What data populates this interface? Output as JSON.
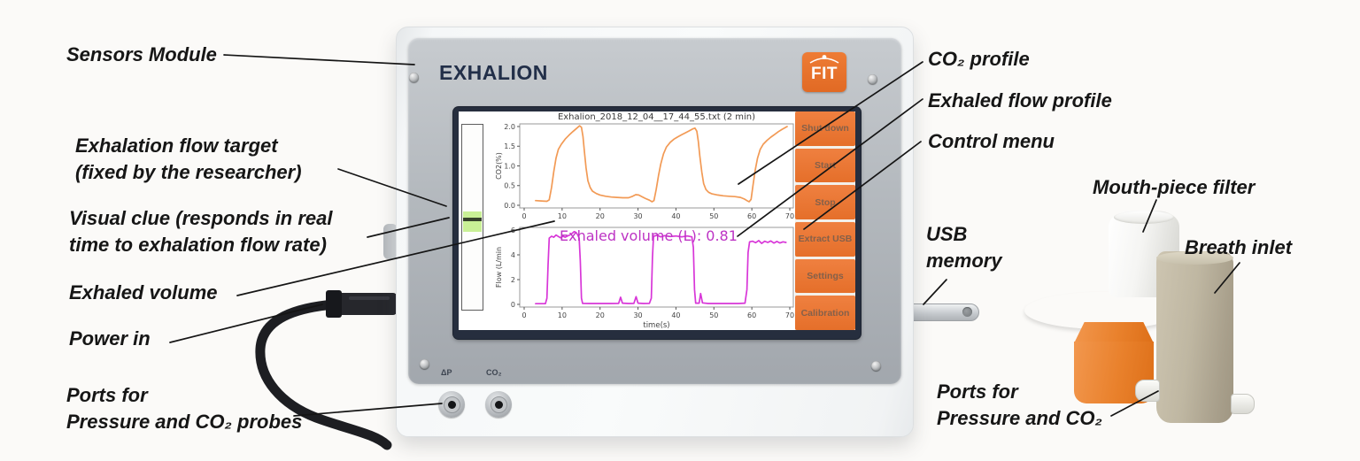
{
  "labels": {
    "sensors_module": "Sensors Module",
    "flow_target_1": "Exhalation flow target",
    "flow_target_2": "(fixed by the researcher)",
    "visual_clue_1": "Visual clue (responds in real",
    "visual_clue_2": "time to exhalation flow rate)",
    "exhaled_volume": "Exhaled volume",
    "power_in": "Power in",
    "ports_probes_1": "Ports for",
    "ports_probes_2": "Pressure and CO₂ probes",
    "co2_profile": "CO₂ profile",
    "flow_profile": "Exhaled flow profile",
    "control_menu": "Control menu",
    "usb_memory_1": "USB",
    "usb_memory_2": "memory",
    "mouthpiece_filter": "Mouth-piece filter",
    "breath_inlet": "Breath inlet",
    "ports_right_1": "Ports for",
    "ports_right_2": "Pressure and CO₂"
  },
  "device": {
    "brand": "EXHALION",
    "logo_text": "FIT",
    "port_pressure": "ΔP",
    "port_co2": "CO₂"
  },
  "screen": {
    "menu_buttons": [
      "Shut down",
      "Start",
      "Stop",
      "Extract USB",
      "Settings",
      "Calibration"
    ],
    "overlay_text": "Exhaled volume (L): 0.81"
  },
  "chart_data": [
    {
      "type": "line",
      "title": "Exhalion_2018_12_04__17_44_55.txt (2 min)",
      "xlabel": "",
      "ylabel": "CO2(%)",
      "xlim": [
        0,
        70
      ],
      "ylim": [
        0.0,
        2.0
      ],
      "xticks": [
        0,
        10,
        20,
        30,
        40,
        50,
        60,
        70
      ],
      "yticks": [
        "0.0",
        "0.5",
        "1.0",
        "1.5",
        "2.0"
      ],
      "color": "#f29a55",
      "legend": "none",
      "grid": false,
      "series": [
        {
          "name": "CO2 concentration",
          "points": [
            [
              3,
              0.12
            ],
            [
              4.5,
              0.11
            ],
            [
              6,
              0.1
            ],
            [
              6.6,
              0.14
            ],
            [
              7.2,
              0.45
            ],
            [
              7.8,
              0.85
            ],
            [
              8.4,
              1.2
            ],
            [
              9,
              1.42
            ],
            [
              9.8,
              1.55
            ],
            [
              10.8,
              1.68
            ],
            [
              11.8,
              1.78
            ],
            [
              12.8,
              1.87
            ],
            [
              13.8,
              1.95
            ],
            [
              14.6,
              2.02
            ],
            [
              15.1,
              1.98
            ],
            [
              15.5,
              1.75
            ],
            [
              15.9,
              1.35
            ],
            [
              16.3,
              0.95
            ],
            [
              16.8,
              0.62
            ],
            [
              17.4,
              0.45
            ],
            [
              18,
              0.36
            ],
            [
              19,
              0.3
            ],
            [
              20,
              0.26
            ],
            [
              21.5,
              0.23
            ],
            [
              23,
              0.21
            ],
            [
              24.5,
              0.2
            ],
            [
              26,
              0.19
            ],
            [
              27.5,
              0.19
            ],
            [
              28.6,
              0.23
            ],
            [
              29.4,
              0.27
            ],
            [
              30.2,
              0.26
            ],
            [
              31,
              0.22
            ],
            [
              32,
              0.17
            ],
            [
              33,
              0.13
            ],
            [
              33.7,
              0.09
            ],
            [
              34.2,
              0.12
            ],
            [
              34.8,
              0.4
            ],
            [
              35.4,
              0.75
            ],
            [
              36,
              1.05
            ],
            [
              36.7,
              1.3
            ],
            [
              37.5,
              1.48
            ],
            [
              38.5,
              1.6
            ],
            [
              39.5,
              1.68
            ],
            [
              40.5,
              1.74
            ],
            [
              41.5,
              1.79
            ],
            [
              42.5,
              1.84
            ],
            [
              43.5,
              1.89
            ],
            [
              44.4,
              1.94
            ],
            [
              45,
              1.96
            ],
            [
              45.5,
              1.88
            ],
            [
              45.9,
              1.62
            ],
            [
              46.3,
              1.25
            ],
            [
              46.8,
              0.85
            ],
            [
              47.3,
              0.55
            ],
            [
              47.9,
              0.4
            ],
            [
              48.6,
              0.33
            ],
            [
              49.5,
              0.29
            ],
            [
              51,
              0.26
            ],
            [
              52.5,
              0.24
            ],
            [
              54,
              0.23
            ],
            [
              55.5,
              0.22
            ],
            [
              57,
              0.2
            ],
            [
              58,
              0.16
            ],
            [
              58.7,
              0.12
            ],
            [
              59.3,
              0.09
            ],
            [
              59.8,
              0.15
            ],
            [
              60.3,
              0.5
            ],
            [
              60.9,
              0.9
            ],
            [
              61.5,
              1.2
            ],
            [
              62.2,
              1.42
            ],
            [
              63,
              1.55
            ],
            [
              64,
              1.65
            ],
            [
              65,
              1.73
            ],
            [
              66,
              1.8
            ],
            [
              67,
              1.87
            ],
            [
              68,
              1.93
            ],
            [
              69.3,
              2.0
            ]
          ]
        }
      ]
    },
    {
      "type": "line",
      "title": "",
      "xlabel": "time(s)",
      "ylabel": "Flow (L/min",
      "xlim": [
        0,
        70
      ],
      "ylim": [
        0,
        6
      ],
      "xticks": [
        0,
        10,
        20,
        30,
        40,
        50,
        60,
        70
      ],
      "yticks": [
        "0",
        "2",
        "4",
        "6"
      ],
      "color": "#d836d8",
      "legend": "none",
      "grid": false,
      "annotation": "Exhaled volume (L): 0.81",
      "series": [
        {
          "name": "Exhaled flow",
          "points": [
            [
              3,
              0.06
            ],
            [
              5.6,
              0.06
            ],
            [
              6,
              0.5
            ],
            [
              6.3,
              3.2
            ],
            [
              6.6,
              5.35
            ],
            [
              7.2,
              5.5
            ],
            [
              7.8,
              5.42
            ],
            [
              8.4,
              5.6
            ],
            [
              9,
              5.48
            ],
            [
              9.6,
              5.38
            ],
            [
              10.2,
              5.5
            ],
            [
              10.8,
              5.42
            ],
            [
              11.4,
              5.52
            ],
            [
              12,
              5.6
            ],
            [
              12.6,
              5.72
            ],
            [
              13.2,
              5.88
            ],
            [
              13.7,
              5.8
            ],
            [
              14.1,
              5.62
            ],
            [
              14.5,
              5.35
            ],
            [
              14.8,
              3.5
            ],
            [
              15.1,
              0.5
            ],
            [
              15.4,
              0.08
            ],
            [
              17,
              0.07
            ],
            [
              20,
              0.07
            ],
            [
              23,
              0.07
            ],
            [
              24.9,
              0.08
            ],
            [
              25.4,
              0.58
            ],
            [
              25.9,
              0.1
            ],
            [
              27.5,
              0.07
            ],
            [
              28.9,
              0.08
            ],
            [
              29.5,
              0.62
            ],
            [
              30,
              0.1
            ],
            [
              31.5,
              0.07
            ],
            [
              33,
              0.08
            ],
            [
              33.5,
              0.5
            ],
            [
              33.8,
              3.8
            ],
            [
              34.1,
              5.5
            ],
            [
              35,
              5.58
            ],
            [
              36,
              5.45
            ],
            [
              37,
              5.55
            ],
            [
              38.5,
              5.48
            ],
            [
              40,
              5.52
            ],
            [
              41.5,
              5.45
            ],
            [
              43,
              5.52
            ],
            [
              44.2,
              5.45
            ],
            [
              44.6,
              4.6
            ],
            [
              44.9,
              1.2
            ],
            [
              45.2,
              0.1
            ],
            [
              46.1,
              0.1
            ],
            [
              46.5,
              0.88
            ],
            [
              47,
              0.12
            ],
            [
              48.5,
              0.07
            ],
            [
              51,
              0.07
            ],
            [
              54,
              0.07
            ],
            [
              56.5,
              0.07
            ],
            [
              58.2,
              0.1
            ],
            [
              58.7,
              1.2
            ],
            [
              59,
              4.2
            ],
            [
              59.4,
              5.05
            ],
            [
              60.2,
              5.1
            ],
            [
              61,
              4.98
            ],
            [
              61.8,
              5.15
            ],
            [
              62.6,
              4.92
            ],
            [
              63.4,
              5.1
            ],
            [
              64.2,
              5.0
            ],
            [
              65,
              5.12
            ],
            [
              65.8,
              4.95
            ],
            [
              66.6,
              5.08
            ],
            [
              67.4,
              4.96
            ],
            [
              68.2,
              5.05
            ],
            [
              69,
              5.0
            ]
          ]
        }
      ]
    }
  ]
}
